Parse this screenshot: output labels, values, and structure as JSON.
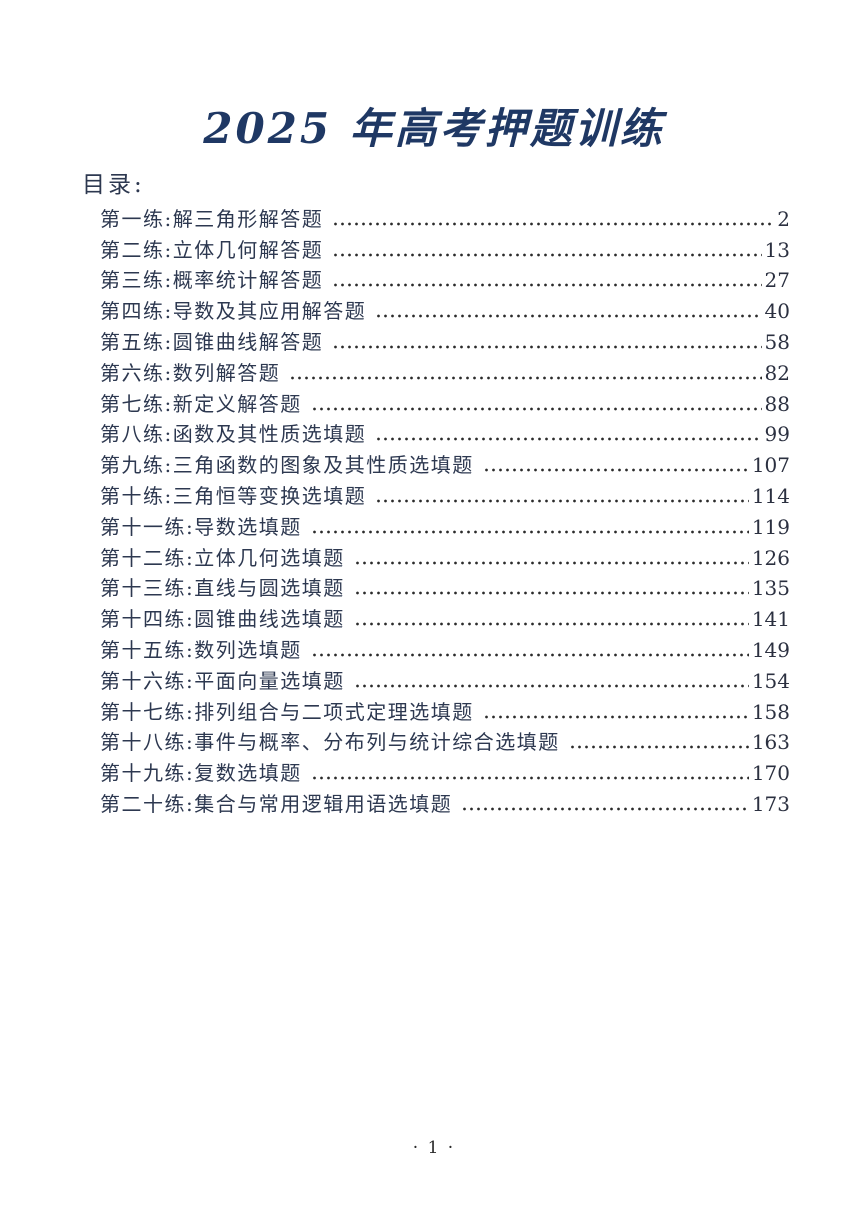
{
  "page": {
    "title": "2025 年高考押题训练",
    "toc_label": "目录:",
    "footer_page_number": "· 1 ·"
  },
  "colors": {
    "title_text": "#1F3864",
    "body_text": "#2D3850",
    "dot_leader": "#2B2B2B"
  },
  "toc": {
    "entries": [
      {
        "label": "第一练:解三角形解答题",
        "page": "2"
      },
      {
        "label": "第二练:立体几何解答题",
        "page": "13"
      },
      {
        "label": "第三练:概率统计解答题",
        "page": "27"
      },
      {
        "label": "第四练:导数及其应用解答题",
        "page": "40"
      },
      {
        "label": "第五练:圆锥曲线解答题",
        "page": "58"
      },
      {
        "label": "第六练:数列解答题",
        "page": "82"
      },
      {
        "label": "第七练:新定义解答题",
        "page": "88"
      },
      {
        "label": "第八练:函数及其性质选填题",
        "page": "99"
      },
      {
        "label": "第九练:三角函数的图象及其性质选填题",
        "page": "107"
      },
      {
        "label": "第十练:三角恒等变换选填题",
        "page": "114"
      },
      {
        "label": "第十一练:导数选填题",
        "page": "119"
      },
      {
        "label": "第十二练:立体几何选填题",
        "page": "126"
      },
      {
        "label": "第十三练:直线与圆选填题",
        "page": "135"
      },
      {
        "label": "第十四练:圆锥曲线选填题",
        "page": "141"
      },
      {
        "label": "第十五练:数列选填题",
        "page": "149"
      },
      {
        "label": "第十六练:平面向量选填题",
        "page": "154"
      },
      {
        "label": "第十七练:排列组合与二项式定理选填题",
        "page": "158"
      },
      {
        "label": "第十八练:事件与概率、分布列与统计综合选填题",
        "page": "163"
      },
      {
        "label": "第十九练:复数选填题",
        "page": "170"
      },
      {
        "label": "第二十练:集合与常用逻辑用语选填题",
        "page": "173"
      }
    ]
  }
}
